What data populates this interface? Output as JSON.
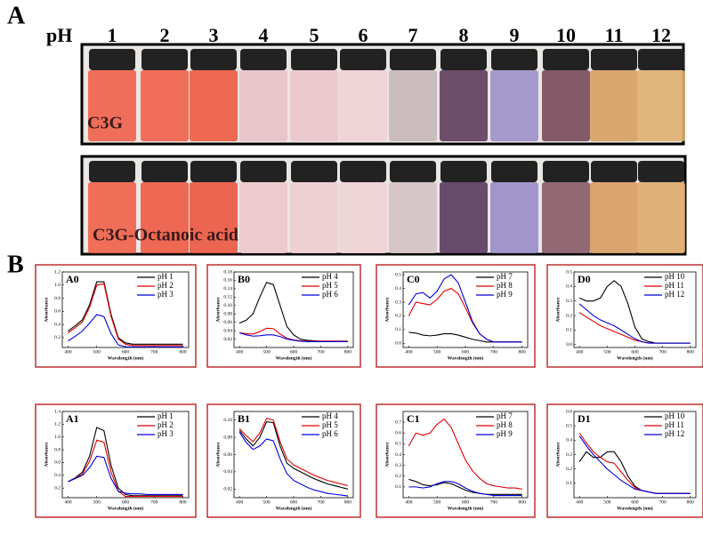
{
  "panel_a": {
    "label": "A",
    "ph_label": "pH",
    "ph_values": [
      "1",
      "2",
      "3",
      "4",
      "5",
      "6",
      "7",
      "8",
      "9",
      "10",
      "11",
      "12"
    ],
    "row_labels": [
      "C3G",
      "C3G-Octanoic acid"
    ]
  },
  "panel_b": {
    "label": "B"
  },
  "chart_data": [
    {
      "type": "line",
      "title": "A0",
      "xlabel": "Wavelength (nm)",
      "ylabel": "Absorbance",
      "x": [
        400,
        425,
        450,
        475,
        500,
        525,
        550,
        575,
        600,
        625,
        650,
        675,
        700,
        725,
        750,
        775,
        800
      ],
      "xlim": [
        380,
        820
      ],
      "xticks": [
        400,
        500,
        600,
        700,
        800
      ],
      "ylim": [
        0.05,
        1.2
      ],
      "yticks": [
        0.2,
        0.4,
        0.6,
        0.8,
        {
          "value": 1,
          "label": "1.0"
        },
        1.2
      ],
      "series": [
        {
          "name": "pH 1",
          "color": "#000000",
          "values": [
            0.3,
            0.38,
            0.47,
            0.7,
            1.05,
            1.05,
            0.55,
            0.2,
            0.12,
            0.1,
            0.1,
            0.1,
            0.1,
            0.1,
            0.1,
            0.1,
            0.1
          ]
        },
        {
          "name": "pH 2",
          "color": "#e00000",
          "values": [
            0.27,
            0.35,
            0.44,
            0.66,
            1.0,
            1.02,
            0.52,
            0.18,
            0.1,
            0.08,
            0.08,
            0.08,
            0.08,
            0.08,
            0.08,
            0.08,
            0.08
          ]
        },
        {
          "name": "pH 3",
          "color": "#0000e0",
          "values": [
            0.15,
            0.22,
            0.3,
            0.42,
            0.55,
            0.52,
            0.26,
            0.09,
            0.06,
            0.06,
            0.06,
            0.06,
            0.06,
            0.06,
            0.06,
            0.06,
            0.06
          ]
        }
      ]
    },
    {
      "type": "line",
      "title": "B0",
      "xlabel": "Wavelength (nm)",
      "ylabel": "Absorbance",
      "x": [
        400,
        425,
        450,
        475,
        500,
        525,
        550,
        575,
        600,
        625,
        650,
        675,
        700,
        725,
        750,
        775,
        800
      ],
      "xlim": [
        380,
        820
      ],
      "xticks": [
        400,
        500,
        600,
        700,
        800
      ],
      "ylim": [
        0,
        0.18
      ],
      "yticks": [
        0.02,
        0.04,
        0.06,
        0.08,
        {
          "value": 0.1,
          "label": "0.10"
        },
        0.12,
        0.14,
        0.16,
        0.18
      ],
      "series": [
        {
          "name": "pH 4",
          "color": "#000000",
          "values": [
            0.058,
            0.065,
            0.08,
            0.12,
            0.155,
            0.15,
            0.1,
            0.05,
            0.03,
            0.02,
            0.017,
            0.016,
            0.015,
            0.015,
            0.015,
            0.015,
            0.015
          ]
        },
        {
          "name": "pH 5",
          "color": "#e00000",
          "values": [
            0.035,
            0.033,
            0.032,
            0.038,
            0.046,
            0.045,
            0.032,
            0.022,
            0.018,
            0.016,
            0.015,
            0.015,
            0.015,
            0.015,
            0.015,
            0.015,
            0.015
          ]
        },
        {
          "name": "pH 6",
          "color": "#0000e0",
          "values": [
            0.035,
            0.03,
            0.027,
            0.028,
            0.03,
            0.03,
            0.026,
            0.02,
            0.017,
            0.015,
            0.014,
            0.014,
            0.014,
            0.014,
            0.014,
            0.014,
            0.014
          ]
        }
      ]
    },
    {
      "type": "line",
      "title": "C0",
      "xlabel": "Wavelength (nm)",
      "ylabel": "Absorbance",
      "x": [
        400,
        425,
        450,
        475,
        500,
        525,
        550,
        575,
        600,
        625,
        650,
        675,
        700,
        725,
        750,
        775,
        800
      ],
      "xlim": [
        380,
        820
      ],
      "xticks": [
        400,
        500,
        600,
        700,
        800
      ],
      "ylim": [
        -0.03,
        0.52
      ],
      "yticks": [
        {
          "value": 0,
          "label": "0.0"
        },
        0.1,
        0.2,
        0.3,
        0.4,
        0.5
      ],
      "series": [
        {
          "name": "pH 7",
          "color": "#000000",
          "values": [
            0.08,
            0.075,
            0.06,
            0.055,
            0.06,
            0.07,
            0.07,
            0.06,
            0.045,
            0.03,
            0.02,
            0.01,
            0.01,
            0.01,
            0.01,
            0.01,
            0.01
          ]
        },
        {
          "name": "pH 8",
          "color": "#e00000",
          "values": [
            0.2,
            0.3,
            0.29,
            0.28,
            0.32,
            0.38,
            0.4,
            0.36,
            0.26,
            0.15,
            0.07,
            0.03,
            0.01,
            0.01,
            0.01,
            0.01,
            0.01
          ]
        },
        {
          "name": "pH 9",
          "color": "#0000e0",
          "values": [
            0.28,
            0.36,
            0.37,
            0.33,
            0.38,
            0.47,
            0.5,
            0.44,
            0.3,
            0.16,
            0.07,
            0.03,
            0.01,
            0.01,
            0.01,
            0.01,
            0.01
          ]
        }
      ]
    },
    {
      "type": "line",
      "title": "D0",
      "xlabel": "Wavelength (nm)",
      "ylabel": "Absorbance",
      "x": [
        400,
        425,
        450,
        475,
        500,
        525,
        550,
        575,
        600,
        625,
        650,
        675,
        700,
        725,
        750,
        775,
        800
      ],
      "xlim": [
        380,
        820
      ],
      "xticks": [
        400,
        500,
        600,
        700,
        800
      ],
      "ylim": [
        -0.02,
        0.5
      ],
      "yticks": [
        {
          "value": 0,
          "label": "0.0"
        },
        0.1,
        0.2,
        0.3,
        0.4,
        0.5
      ],
      "series": [
        {
          "name": "pH 10",
          "color": "#000000",
          "values": [
            0.32,
            0.3,
            0.3,
            0.32,
            0.4,
            0.44,
            0.4,
            0.28,
            0.12,
            0.04,
            0.02,
            0.01,
            0.01,
            0.01,
            0.01,
            0.01,
            0.01
          ]
        },
        {
          "name": "pH 11",
          "color": "#e00000",
          "values": [
            0.22,
            0.19,
            0.16,
            0.13,
            0.11,
            0.09,
            0.07,
            0.05,
            0.03,
            0.02,
            0.01,
            0.01,
            0.01,
            0.01,
            0.01,
            0.01,
            0.01
          ]
        },
        {
          "name": "pH 12",
          "color": "#0000e0",
          "values": [
            0.28,
            0.24,
            0.2,
            0.17,
            0.15,
            0.13,
            0.1,
            0.07,
            0.04,
            0.02,
            0.01,
            0.01,
            0.01,
            0.01,
            0.01,
            0.01,
            0.01
          ]
        }
      ]
    },
    {
      "type": "line",
      "title": "A1",
      "xlabel": "Wavelength (nm)",
      "ylabel": "Absorbance",
      "x": [
        400,
        425,
        450,
        475,
        500,
        525,
        550,
        575,
        600,
        625,
        650,
        675,
        700,
        725,
        750,
        775,
        800
      ],
      "xlim": [
        380,
        820
      ],
      "xticks": [
        400,
        500,
        600,
        700,
        800
      ],
      "ylim": [
        0.05,
        1.4
      ],
      "yticks": [
        0.2,
        0.4,
        0.6,
        0.8,
        {
          "value": 1,
          "label": "1.0"
        },
        1.2,
        1.4
      ],
      "series": [
        {
          "name": "pH 1",
          "color": "#000000",
          "values": [
            0.3,
            0.36,
            0.45,
            0.7,
            1.15,
            1.1,
            0.55,
            0.2,
            0.1,
            0.08,
            0.08,
            0.08,
            0.08,
            0.08,
            0.08,
            0.08,
            0.08
          ]
        },
        {
          "name": "pH 2",
          "color": "#e00000",
          "values": [
            0.3,
            0.35,
            0.42,
            0.62,
            0.95,
            0.92,
            0.45,
            0.15,
            0.07,
            0.07,
            0.07,
            0.07,
            0.07,
            0.07,
            0.07,
            0.07,
            0.07
          ]
        },
        {
          "name": "pH 3",
          "color": "#0000e0",
          "values": [
            0.3,
            0.35,
            0.4,
            0.52,
            0.7,
            0.68,
            0.35,
            0.15,
            0.12,
            0.11,
            0.11,
            0.1,
            0.1,
            0.1,
            0.1,
            0.1,
            0.1
          ]
        }
      ]
    },
    {
      "type": "line",
      "title": "B1",
      "xlabel": "Wavelength (nm)",
      "ylabel": "Absorbance",
      "x": [
        400,
        425,
        450,
        475,
        500,
        525,
        550,
        575,
        600,
        625,
        650,
        675,
        700,
        725,
        750,
        775,
        800
      ],
      "xlim": [
        380,
        820
      ],
      "xticks": [
        400,
        500,
        600,
        700,
        800
      ],
      "ylim": [
        0.01,
        0.11
      ],
      "yticks": [
        0.02,
        0.04,
        0.06,
        0.08,
        {
          "value": 0.1,
          "label": "0.10"
        }
      ],
      "series": [
        {
          "name": "pH 4",
          "color": "#000000",
          "values": [
            0.088,
            0.078,
            0.07,
            0.08,
            0.098,
            0.097,
            0.07,
            0.05,
            0.044,
            0.04,
            0.036,
            0.032,
            0.029,
            0.026,
            0.024,
            0.022,
            0.02
          ]
        },
        {
          "name": "pH 5",
          "color": "#e00000",
          "values": [
            0.09,
            0.082,
            0.075,
            0.085,
            0.102,
            0.1,
            0.075,
            0.055,
            0.048,
            0.044,
            0.04,
            0.036,
            0.033,
            0.03,
            0.028,
            0.026,
            0.024
          ]
        },
        {
          "name": "pH 6",
          "color": "#0000e0",
          "values": [
            0.086,
            0.074,
            0.066,
            0.07,
            0.078,
            0.076,
            0.055,
            0.038,
            0.03,
            0.026,
            0.022,
            0.019,
            0.017,
            0.015,
            0.014,
            0.013,
            0.012
          ]
        }
      ]
    },
    {
      "type": "line",
      "title": "C1",
      "xlabel": "Wavelength (nm)",
      "ylabel": "Absorbance",
      "x": [
        400,
        425,
        450,
        475,
        500,
        525,
        550,
        575,
        600,
        625,
        650,
        675,
        700,
        725,
        750,
        775,
        800
      ],
      "xlim": [
        380,
        820
      ],
      "xticks": [
        400,
        500,
        600,
        700,
        800
      ],
      "ylim": [
        0,
        0.8
      ],
      "yticks": [
        0.1,
        0.2,
        0.3,
        0.4,
        0.5,
        0.6,
        0.7
      ],
      "series": [
        {
          "name": "pH 7",
          "color": "#000000",
          "values": [
            0.17,
            0.15,
            0.12,
            0.11,
            0.12,
            0.14,
            0.13,
            0.1,
            0.07,
            0.05,
            0.04,
            0.03,
            0.03,
            0.03,
            0.03,
            0.03,
            0.03
          ]
        },
        {
          "name": "pH 8",
          "color": "#e00000",
          "values": [
            0.48,
            0.6,
            0.58,
            0.6,
            0.68,
            0.73,
            0.65,
            0.5,
            0.35,
            0.25,
            0.18,
            0.13,
            0.11,
            0.1,
            0.09,
            0.09,
            0.08
          ]
        },
        {
          "name": "pH 9",
          "color": "#0000e0",
          "values": [
            0.1,
            0.1,
            0.09,
            0.1,
            0.13,
            0.15,
            0.15,
            0.13,
            0.09,
            0.06,
            0.04,
            0.03,
            0.02,
            0.02,
            0.02,
            0.02,
            0.02
          ]
        }
      ]
    },
    {
      "type": "line",
      "title": "D1",
      "xlabel": "Wavelength (nm)",
      "ylabel": "Absorbance",
      "x": [
        400,
        425,
        450,
        475,
        500,
        525,
        550,
        575,
        600,
        625,
        650,
        675,
        700,
        725,
        750,
        775,
        800
      ],
      "xlim": [
        380,
        820
      ],
      "xticks": [
        400,
        500,
        600,
        700,
        800
      ],
      "ylim": [
        0,
        0.6
      ],
      "yticks": [
        0.1,
        0.2,
        0.3,
        0.4,
        0.5,
        0.6
      ],
      "series": [
        {
          "name": "pH 10",
          "color": "#000000",
          "values": [
            0.25,
            0.32,
            0.28,
            0.28,
            0.32,
            0.32,
            0.25,
            0.15,
            0.08,
            0.05,
            0.04,
            0.03,
            0.03,
            0.03,
            0.03,
            0.03,
            0.03
          ]
        },
        {
          "name": "pH 11",
          "color": "#e00000",
          "values": [
            0.45,
            0.38,
            0.32,
            0.28,
            0.25,
            0.24,
            0.18,
            0.12,
            0.07,
            0.05,
            0.04,
            0.03,
            0.03,
            0.03,
            0.03,
            0.03,
            0.03
          ]
        },
        {
          "name": "pH 12",
          "color": "#0000e0",
          "values": [
            0.43,
            0.36,
            0.3,
            0.25,
            0.2,
            0.16,
            0.12,
            0.09,
            0.06,
            0.05,
            0.04,
            0.03,
            0.03,
            0.03,
            0.03,
            0.03,
            0.03
          ]
        }
      ]
    }
  ]
}
